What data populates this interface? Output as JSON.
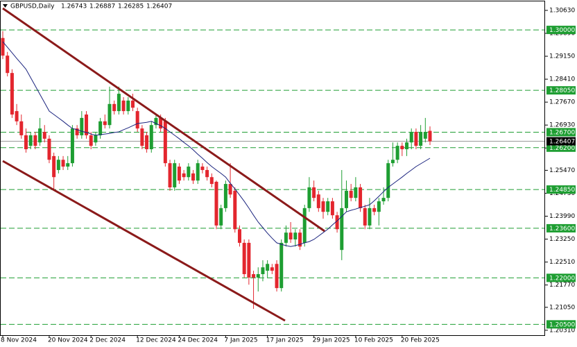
{
  "chart_data": {
    "type": "candlestick",
    "title": "GBPUSD,Daily",
    "categories": [
      "8 Nov 2024",
      null,
      null,
      null,
      null,
      null,
      null,
      null,
      null,
      null,
      "20 Nov 2024",
      null,
      null,
      null,
      null,
      null,
      null,
      null,
      null,
      "2 Dec 2024",
      null,
      null,
      null,
      null,
      null,
      null,
      null,
      null,
      null,
      "12 Dec 2024",
      null,
      null,
      null,
      null,
      null,
      null,
      null,
      null,
      "24 Dec 2024",
      null,
      null,
      null,
      null,
      null,
      null,
      null,
      null,
      null,
      "7 Jan 2025",
      null,
      null,
      null,
      null,
      null,
      null,
      null,
      null,
      "17 Jan 2025",
      null,
      null,
      null,
      null,
      null,
      null,
      null,
      null,
      null,
      "29 Jan 2025",
      null,
      null,
      null,
      null,
      null,
      null,
      null,
      null,
      "10 Feb 2025",
      null,
      null,
      null,
      null,
      null,
      null,
      null,
      null,
      null,
      "20 Feb 2025",
      null,
      null,
      null,
      null,
      null,
      null
    ],
    "open": [
      1.2974,
      1.2917,
      1.2861,
      1.2738,
      1.2705,
      1.266,
      1.2626,
      1.266,
      1.2637,
      1.2671,
      1.2649,
      1.2593,
      1.2548,
      1.2581,
      1.2559,
      1.257,
      1.2682,
      1.266,
      1.2727,
      1.266,
      1.2637,
      1.266,
      1.2705,
      1.2693,
      1.2761,
      1.2738,
      1.2772,
      1.2738,
      1.2772,
      1.2738,
      1.2682,
      1.266,
      1.2615,
      1.2693,
      1.2716,
      1.2705,
      1.257,
      1.2492,
      1.2559,
      1.2537,
      1.2525,
      1.2537,
      1.2514,
      1.2559,
      1.2548,
      1.2525,
      1.251,
      1.2369,
      1.2425,
      1.2503,
      1.2481,
      1.2357,
      1.2313,
      1.2313,
      1.2212,
      1.2201,
      1.2212,
      1.2223,
      1.2234,
      1.2245,
      1.2167,
      1.2313,
      1.2346,
      1.2324,
      1.2346,
      1.2313,
      1.2425,
      1.2492,
      1.2469,
      1.2447,
      1.2413,
      1.2447,
      1.2402,
      1.229,
      1.2425,
      1.2481,
      1.2458,
      1.2492,
      1.2425,
      1.2369,
      1.2425,
      1.2413,
      1.2447,
      1.2458,
      1.257,
      1.2581,
      1.2626,
      1.2615,
      1.2637,
      1.2671,
      1.2626,
      1.2649,
      1.26743
    ],
    "high": [
      1.2996,
      1.2929,
      1.2873,
      1.2761,
      1.2727,
      1.2682,
      1.2671,
      1.2671,
      1.2716,
      1.2693,
      1.266,
      1.2604,
      1.2593,
      1.2593,
      1.2593,
      1.2693,
      1.2693,
      1.2738,
      1.2738,
      1.2671,
      1.2671,
      1.2716,
      1.2727,
      1.2817,
      1.2772,
      1.2817,
      1.2783,
      1.2783,
      1.2794,
      1.2749,
      1.2693,
      1.2671,
      1.2705,
      1.2727,
      1.2727,
      1.2716,
      1.2581,
      1.2581,
      1.257,
      1.2548,
      1.257,
      1.2548,
      1.2581,
      1.257,
      1.2559,
      1.2537,
      1.2514,
      1.2436,
      1.2514,
      1.257,
      1.2492,
      1.2369,
      1.2324,
      1.2324,
      1.2223,
      1.2234,
      1.2257,
      1.2257,
      1.2245,
      1.2257,
      1.2324,
      1.2369,
      1.238,
      1.2357,
      1.2357,
      1.2436,
      1.2525,
      1.2514,
      1.2481,
      1.2458,
      1.2458,
      1.2458,
      1.2413,
      1.2548,
      1.2514,
      1.2503,
      1.2525,
      1.2503,
      1.2436,
      1.2458,
      1.2436,
      1.2458,
      1.2492,
      1.2581,
      1.2637,
      1.2637,
      1.2637,
      1.2649,
      1.2682,
      1.2682,
      1.2693,
      1.2716,
      1.26887
    ],
    "low": [
      1.2906,
      1.285,
      1.2716,
      1.2693,
      1.2649,
      1.2604,
      1.2615,
      1.2615,
      1.2626,
      1.2637,
      1.257,
      1.2481,
      1.2537,
      1.2548,
      1.2548,
      1.2559,
      1.2649,
      1.2649,
      1.2649,
      1.2615,
      1.2626,
      1.2649,
      1.2682,
      1.2682,
      1.2727,
      1.2727,
      1.2727,
      1.2727,
      1.2738,
      1.2671,
      1.2615,
      1.2604,
      1.2604,
      1.2682,
      1.2671,
      1.2559,
      1.2481,
      1.2481,
      1.2503,
      1.2514,
      1.2514,
      1.2503,
      1.2503,
      1.2537,
      1.2514,
      1.2492,
      1.2357,
      1.2357,
      1.2413,
      1.2458,
      1.2346,
      1.2301,
      1.2201,
      1.2178,
      1.21,
      1.2156,
      1.2189,
      1.2201,
      1.2212,
      1.2156,
      1.2156,
      1.2301,
      1.2313,
      1.2301,
      1.229,
      1.2301,
      1.2413,
      1.2447,
      1.2413,
      1.2391,
      1.2402,
      1.2391,
      1.2346,
      1.2257,
      1.2413,
      1.2447,
      1.2447,
      1.2413,
      1.2357,
      1.2357,
      1.2402,
      1.2369,
      1.2436,
      1.2447,
      1.2559,
      1.257,
      1.2593,
      1.2593,
      1.2615,
      1.2615,
      1.2615,
      1.2637,
      1.26285
    ],
    "close": [
      1.2917,
      1.2861,
      1.2727,
      1.2705,
      1.266,
      1.2615,
      1.266,
      1.2626,
      1.2682,
      1.2649,
      1.2581,
      1.2525,
      1.2581,
      1.2559,
      1.257,
      1.2682,
      1.266,
      1.2716,
      1.266,
      1.2626,
      1.266,
      1.2705,
      1.2693,
      1.2761,
      1.2738,
      1.2794,
      1.2738,
      1.2772,
      1.2749,
      1.2682,
      1.2626,
      1.2615,
      1.2693,
      1.2716,
      1.2682,
      1.257,
      1.2492,
      1.257,
      1.2514,
      1.2525,
      1.2559,
      1.2514,
      1.257,
      1.2548,
      1.2525,
      1.2503,
      1.2369,
      1.2425,
      1.2503,
      1.2469,
      1.2357,
      1.2313,
      1.2212,
      1.2201,
      1.2201,
      1.2212,
      1.2234,
      1.2245,
      1.2223,
      1.2167,
      1.2313,
      1.2346,
      1.2324,
      1.2346,
      1.2301,
      1.2425,
      1.2492,
      1.2458,
      1.2425,
      1.2413,
      1.2447,
      1.2402,
      1.2357,
      1.2425,
      1.2481,
      1.2458,
      1.2492,
      1.2425,
      1.2369,
      1.2425,
      1.2413,
      1.2447,
      1.2458,
      1.257,
      1.2581,
      1.2626,
      1.2615,
      1.2637,
      1.2671,
      1.2626,
      1.2671,
      1.2671,
      1.26407
    ],
    "up_color": "#1e9e32",
    "down_color": "#e3262e",
    "ma": {
      "color": "#1a237e",
      "values": [
        1.2962,
        1.2944,
        1.2926,
        1.2908,
        1.2891,
        1.2873,
        1.2846,
        1.2819,
        1.2792,
        1.2765,
        1.2738,
        1.2727,
        1.2716,
        1.2705,
        1.2693,
        1.2682,
        1.2678,
        1.2673,
        1.2669,
        1.2664,
        1.266,
        1.2662,
        1.2664,
        1.2666,
        1.2669,
        1.2671,
        1.2678,
        1.2684,
        1.2691,
        1.2698,
        1.27,
        1.2702,
        1.2705,
        1.2698,
        1.2691,
        1.2682,
        1.2671,
        1.266,
        1.2649,
        1.2637,
        1.2626,
        1.2613,
        1.2599,
        1.2586,
        1.2572,
        1.2559,
        1.2548,
        1.2537,
        1.2525,
        1.2505,
        1.2487,
        1.2467,
        1.2447,
        1.2425,
        1.2402,
        1.238,
        1.2362,
        1.2344,
        1.2328,
        1.2313,
        1.2308,
        1.2304,
        1.2301,
        1.2304,
        1.2308,
        1.2313,
        1.2317,
        1.2324,
        1.2335,
        1.2346,
        1.2357,
        1.2371,
        1.2384,
        1.2398,
        1.2413,
        1.2418,
        1.2422,
        1.2427,
        1.2431,
        1.2436,
        1.2449,
        1.2463,
        1.2478,
        1.2492,
        1.2503,
        1.2514,
        1.2525,
        1.2537,
        1.2548,
        1.2559,
        1.2568,
        1.2577,
        1.2586
      ]
    },
    "levels": [
      {
        "value": 1.3,
        "label": "1.30000"
      },
      {
        "value": 1.2805,
        "label": "1.28050"
      },
      {
        "value": 1.267,
        "label": "1.26700"
      },
      {
        "value": 1.262,
        "label": "1.26200"
      },
      {
        "value": 1.2485,
        "label": "1.24850"
      },
      {
        "value": 1.236,
        "label": "1.23600"
      },
      {
        "value": 1.22,
        "label": "1.22000"
      },
      {
        "value": 1.205,
        "label": "1.20500"
      }
    ],
    "level_color": "#1e9e32",
    "ylim": [
      1.2015,
      1.3092
    ],
    "yticks": [
      {
        "value": 1.3063,
        "label": "1.30630"
      },
      {
        "value": 1.2989,
        "label": "1.29890"
      },
      {
        "value": 1.2915,
        "label": "1.29150"
      },
      {
        "value": 1.2841,
        "label": "1.28410"
      },
      {
        "value": 1.2767,
        "label": "1.27670"
      },
      {
        "value": 1.2693,
        "label": "1.26930"
      },
      {
        "value": 1.2619,
        "label": "1.26190"
      },
      {
        "value": 1.2547,
        "label": "1.25470"
      },
      {
        "value": 1.2473,
        "label": "1.24730"
      },
      {
        "value": 1.2399,
        "label": "1.23990"
      },
      {
        "value": 1.2325,
        "label": "1.23250"
      },
      {
        "value": 1.2251,
        "label": "1.22510"
      },
      {
        "value": 1.2177,
        "label": "1.21770"
      },
      {
        "value": 1.2105,
        "label": "1.21050"
      },
      {
        "value": 1.2031,
        "label": "1.20310"
      }
    ],
    "grid": false
  }
}
